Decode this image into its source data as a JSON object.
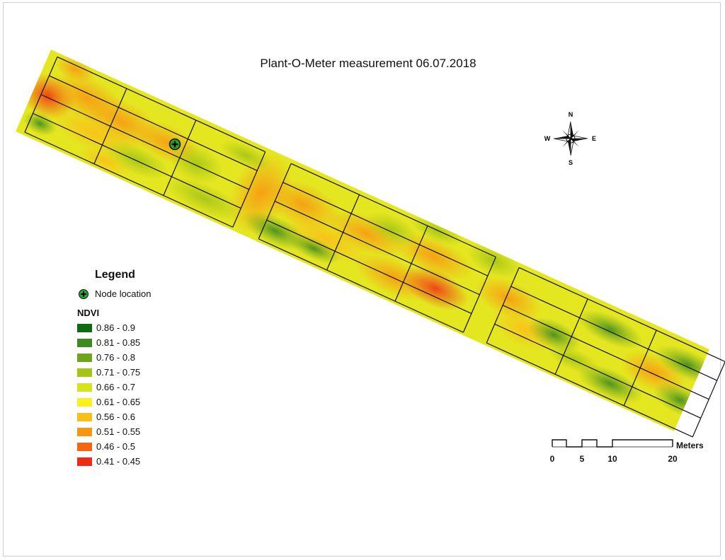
{
  "map": {
    "title": "Plant-O-Meter measurement 06.07.2018"
  },
  "legend": {
    "title": "Legend",
    "node_label": "Node location",
    "ndvi_heading": "NDVI",
    "classes": [
      {
        "label": "0.86 - 0.9",
        "color": "#0e6b13"
      },
      {
        "label": "0.81 - 0.85",
        "color": "#3d8a1f"
      },
      {
        "label": "0.76 - 0.8",
        "color": "#6ea41e"
      },
      {
        "label": "0.71 - 0.75",
        "color": "#a5c416"
      },
      {
        "label": "0.66 - 0.7",
        "color": "#d6e21c"
      },
      {
        "label": "0.61 - 0.65",
        "color": "#fbf01c"
      },
      {
        "label": "0.56 - 0.6",
        "color": "#fbbd18"
      },
      {
        "label": "0.51 - 0.55",
        "color": "#f99512"
      },
      {
        "label": "0.46 - 0.5",
        "color": "#f46516"
      },
      {
        "label": "0.41 - 0.45",
        "color": "#f22a14"
      }
    ]
  },
  "compass": {
    "north": "N",
    "south": "S",
    "east": "E",
    "west": "W"
  },
  "scalebar": {
    "units": "Meters",
    "ticks": [
      "0",
      "5",
      "10",
      "20"
    ]
  },
  "node": {
    "icon": "node-location-icon",
    "color": "#1faa2a"
  }
}
